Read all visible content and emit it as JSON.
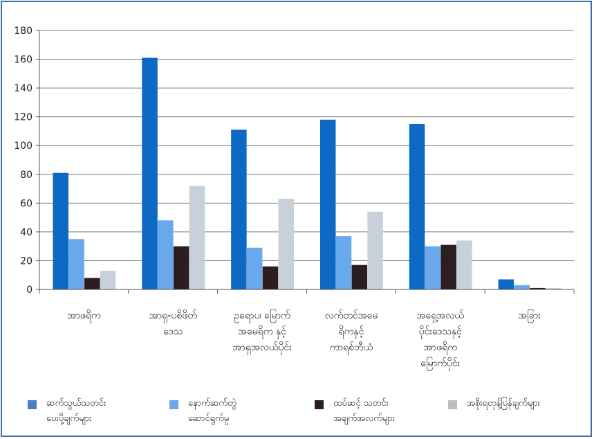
{
  "chart_data": {
    "type": "bar",
    "categories": [
      "အာဖရိက",
      "အာရှ-ပစိဖိတ် ဒေသ",
      "ဥရောပ၊ မြောက် အမေရိက နှင့် အာရှအလယ်ပိုင်း",
      "လက်တင်အမေ ရိကနှင့် ကာရစ်ဘီယံ",
      "အရှေ့အလယ် ပိုင်းဒေသနှင့် အာဖရိက မြောက်ပိုင်း",
      "အခြား"
    ],
    "series": [
      {
        "name": "ဆက်သွယ်သတင်း ပေးပို့ချက်များ",
        "color": "#0c6ac4",
        "values": [
          81,
          161,
          111,
          118,
          115,
          7
        ]
      },
      {
        "name": "နောက်ဆက်တွဲ ဆောင်ရွက်မှု",
        "color": "#6aa8ec",
        "values": [
          35,
          48,
          29,
          37,
          30,
          3
        ]
      },
      {
        "name": "ထပ်ဆင့် သတင်း အချက်အလက်များ",
        "color": "#2b1d20",
        "values": [
          8,
          30,
          16,
          17,
          31,
          1
        ]
      },
      {
        "name": "အစိုးရတုန့်ပြန်ချက်များ",
        "color": "#c8d0da",
        "values": [
          13,
          72,
          63,
          54,
          34,
          1
        ]
      }
    ],
    "ylim": [
      0,
      180
    ],
    "yticks": [
      0,
      20,
      40,
      60,
      80,
      100,
      120,
      140,
      160,
      180
    ],
    "grid": true,
    "legend_position": "bottom"
  },
  "category_labels": [
    [
      "အာဖရိက"
    ],
    [
      "အာရှ-ပစိဖိတ်",
      "ဒေသ"
    ],
    [
      "ဥရောပ၊ မြောက်",
      "အမေရိက နှင့်",
      "အာရှအလယ်ပိုင်း"
    ],
    [
      "လက်တင်အမေ",
      "ရိကနှင့်",
      "ကာရစ်ဘီယံ"
    ],
    [
      "အရှေ့အလယ်",
      "ပိုင်းဒေသနှင့်",
      "အာဖရိက",
      "မြောက်ပိုင်း"
    ],
    [
      "အခြား"
    ]
  ],
  "legend": [
    {
      "text": "ဆက်သွယ်သတင်း\nပေးပို့ချက်များ",
      "color": "#4a7fc1"
    },
    {
      "text": "နောက်ဆက်တွဲ\nဆောင်ရွက်မှု",
      "color": "#6aa8ec"
    },
    {
      "text": "ထပ်ဆင့် သတင်း\nအချက်အလက်များ",
      "color": "#2b1d20"
    },
    {
      "text": "အစိုးရတုန့်ပြန်ချက်များ",
      "color": "#bdbdbd"
    }
  ]
}
